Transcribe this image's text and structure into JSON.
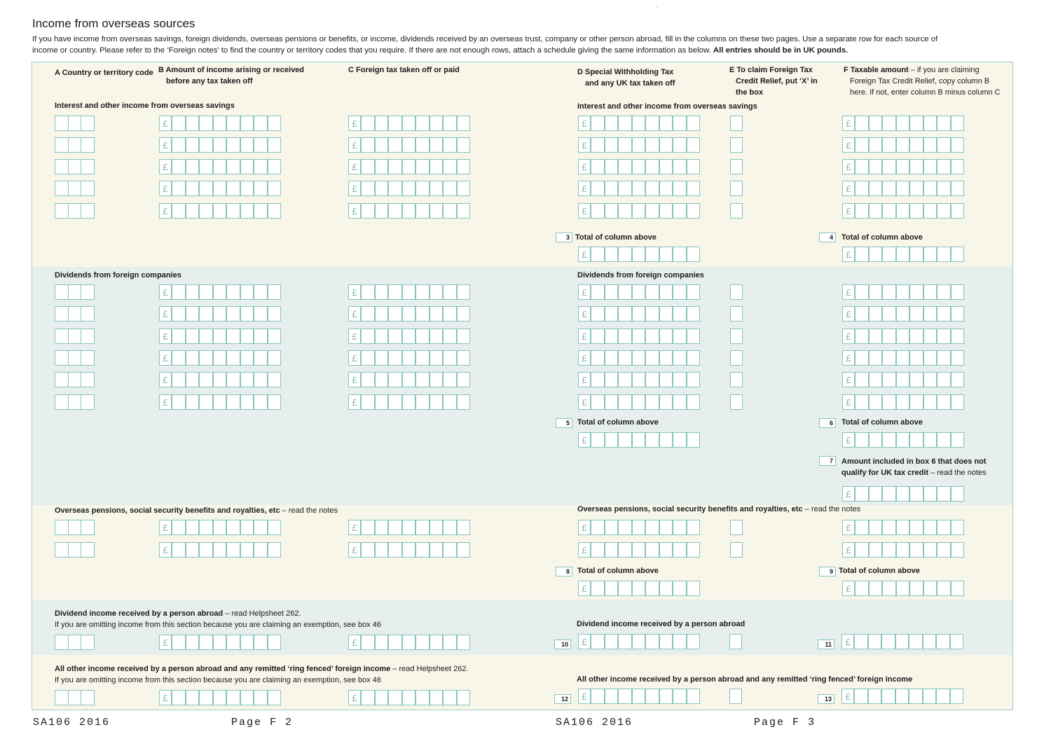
{
  "page": {
    "title": "Income from overseas sources",
    "intro": "If you have income from overseas savings, foreign dividends, overseas pensions or benefits, or income, dividends received by an overseas trust, company or other person abroad, fill in the columns on these two pages. Use a separate row for each source of income or country. Please refer to the ‘Foreign notes’ to find the country or territory codes that you require. If there are not enough rows, attach a schedule giving the same information as below.",
    "intro_bold": "All entries should be in UK pounds."
  },
  "columns": {
    "a": "A Country or territory code",
    "b": "B Amount of income arising or received",
    "b2": "before any tax taken off",
    "c": "C Foreign tax taken off or paid",
    "d": "D Special Withholding Tax",
    "d2": "and any UK tax taken off",
    "e": "E To claim Foreign Tax",
    "e2": "Credit Relief, put ‘X’ in",
    "e3": "the box",
    "f": "F Taxable amount",
    "f_note": " – if you are claiming",
    "f2": "Foreign Tax Credit Relief, copy column B",
    "f3": "here. If not, enter column B minus column C"
  },
  "sections": {
    "savings_left": "Interest and other income from overseas savings",
    "savings_right": "Interest and other income from overseas savings",
    "dividends_left": "Dividends from foreign companies",
    "dividends_right": "Dividends from foreign companies",
    "pensions_left": "Overseas pensions, social security benefits and royalties, etc",
    "pensions_right": "Overseas pensions, social security benefits and royalties, etc",
    "read_notes": " – read the notes",
    "person_left": "Dividend income received by a person abroad",
    "person_left_note": " – read Helpsheet 262.",
    "person_sub": "If you are omitting income from this section because you are claiming an exemption, see box 46",
    "person_right": "Dividend income received by a person abroad",
    "other_left": "All other income received by a person abroad and any remitted ‘ring fenced’ foreign income",
    "other_left_note": " – read Helpsheet 262.",
    "other_sub": "If you are omitting income from this section because you are claiming an exemption, see box 46",
    "other_right": "All other income received by a person abroad and any remitted ‘ring fenced’ foreign income"
  },
  "totals": {
    "label": "Total of column above",
    "box3": "3",
    "box4": "4",
    "box5": "5",
    "box6": "6",
    "box7": "7",
    "box8": "8",
    "box9": "9",
    "box10": "10",
    "box11": "11",
    "box12": "12",
    "box13": "13",
    "box7_label": "Amount included in box 6 that does not",
    "box7_label2": "qualify for UK tax credit",
    "box7_note": " – read the notes"
  },
  "currency_symbol": "£",
  "footer": {
    "left_form": "SA106 2016",
    "left_page": "Page F 2",
    "right_form": "SA106 2016",
    "right_page": "Page F 3"
  },
  "colors": {
    "box_border": "#85c4bb",
    "cream": "#f8f5e9",
    "blue": "#e6eeee"
  }
}
